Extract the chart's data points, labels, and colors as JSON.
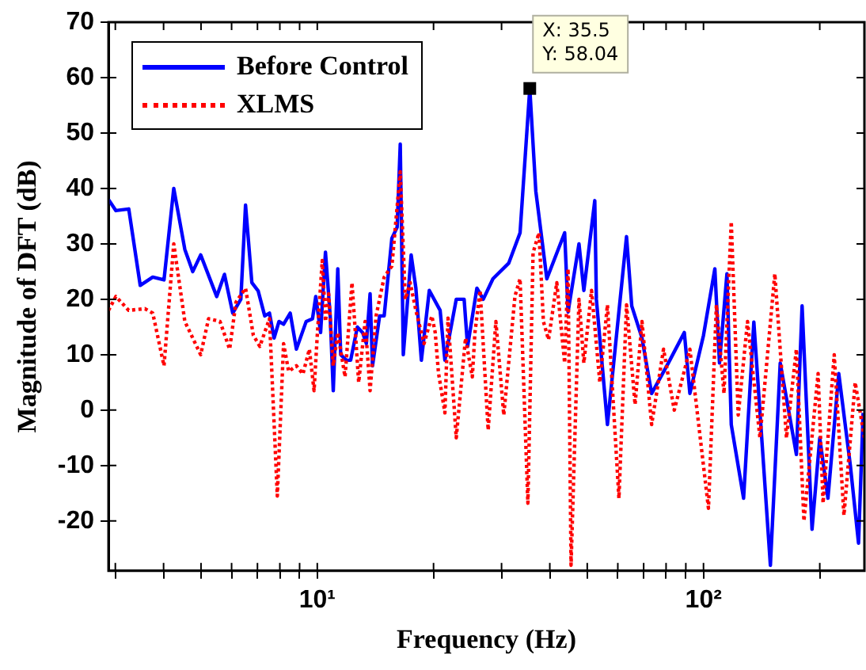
{
  "chart_data": {
    "type": "line",
    "xlabel": "Frequency (Hz)",
    "ylabel": "Magnitude of DFT (dB)",
    "log": "x",
    "grid": false,
    "legend": "top left",
    "marker": "none",
    "xlim": [
      2.88,
      261
    ],
    "ylim": [
      -29,
      70
    ],
    "xticks": [
      {
        "value": 3,
        "label": null
      },
      {
        "value": 4,
        "label": null
      },
      {
        "value": 5,
        "label": null
      },
      {
        "value": 6,
        "label": null
      },
      {
        "value": 7,
        "label": null
      },
      {
        "value": 8,
        "label": null
      },
      {
        "value": 9,
        "label": null
      },
      {
        "value": 10,
        "label": "10¹"
      },
      {
        "value": 20,
        "label": null
      },
      {
        "value": 30,
        "label": null
      },
      {
        "value": 40,
        "label": null
      },
      {
        "value": 50,
        "label": null
      },
      {
        "value": 60,
        "label": null
      },
      {
        "value": 70,
        "label": null
      },
      {
        "value": 80,
        "label": null
      },
      {
        "value": 90,
        "label": null
      },
      {
        "value": 100,
        "label": "10²"
      },
      {
        "value": 200,
        "label": null
      }
    ],
    "yticks": [
      -20,
      -10,
      0,
      10,
      20,
      30,
      40,
      50,
      60,
      70
    ],
    "annotations": [
      {
        "text": "X: 35.5\nY: 58.04",
        "x": 35.5,
        "y": 58.04
      }
    ],
    "series": [
      {
        "name": "Before Control",
        "color": "#0000ff",
        "line_style": "solid",
        "x": [
          2.88,
          3.01,
          3.25,
          3.48,
          3.75,
          4.01,
          4.25,
          4.54,
          4.76,
          4.99,
          5.49,
          5.75,
          6.04,
          6.34,
          6.52,
          6.77,
          7.03,
          7.31,
          7.52,
          7.73,
          7.96,
          8.18,
          8.51,
          8.83,
          9.36,
          9.72,
          9.91,
          10.2,
          10.5,
          10.8,
          11.0,
          11.3,
          11.5,
          11.9,
          12.2,
          12.7,
          13.1,
          13.4,
          13.7,
          13.9,
          14.5,
          14.9,
          15.6,
          16.1,
          16.4,
          16.7,
          17.5,
          18.0,
          18.6,
          19.5,
          20.8,
          21.4,
          22.9,
          24.0,
          24.5,
          25.9,
          26.9,
          28.5,
          31.3,
          33.5,
          35.5,
          36.8,
          37.5,
          39.3,
          43.7,
          44.6,
          47.6,
          49.0,
          52.3,
          52.8,
          56.4,
          63.2,
          65.2,
          69.3,
          73.4,
          81.1,
          89.2,
          92.2,
          100,
          107,
          110,
          115,
          118,
          127,
          135,
          149,
          158,
          174,
          180,
          191,
          200,
          210,
          224,
          240,
          252,
          259
        ],
        "values": [
          38,
          36,
          36.3,
          22.5,
          24,
          23.5,
          40,
          29,
          25,
          28,
          20.5,
          24.5,
          17.5,
          20,
          37,
          23,
          21.5,
          17,
          17.5,
          13,
          16,
          15.5,
          17.5,
          11,
          16,
          16.5,
          20.5,
          14,
          28.5,
          17,
          3.5,
          25.5,
          10,
          9,
          9,
          15,
          14,
          12,
          21,
          8,
          17,
          17,
          31,
          33,
          48,
          10,
          28,
          22,
          9,
          21.6,
          18,
          9,
          20,
          20,
          11.5,
          22,
          20,
          23.7,
          26.5,
          32,
          58.04,
          39.5,
          35,
          23.7,
          32,
          17.7,
          30,
          21.6,
          37.8,
          20,
          -2.6,
          31.3,
          18.8,
          13,
          3,
          8.5,
          14,
          3,
          13.5,
          25.5,
          8.5,
          24.6,
          -2.6,
          -15.9,
          15.9,
          -28,
          8.5,
          -8,
          18.8,
          -21.5,
          -5,
          -15.9,
          6.6,
          -10,
          -24,
          -0.5
        ]
      },
      {
        "name": "XLMS",
        "color": "#ff0000",
        "line_style": "dotted",
        "x": [
          2.88,
          3.01,
          3.25,
          3.58,
          3.75,
          4.01,
          4.25,
          4.54,
          4.99,
          5.23,
          5.6,
          5.93,
          6.16,
          6.52,
          6.83,
          7.1,
          7.52,
          7.88,
          8.18,
          8.43,
          8.83,
          9.18,
          9.54,
          9.81,
          10,
          10.3,
          10.5,
          10.7,
          11.0,
          11.3,
          11.8,
          12.3,
          12.8,
          13.3,
          13.7,
          14.2,
          14.9,
          15.6,
          16.4,
          16.9,
          17.4,
          18.0,
          18.9,
          19.8,
          20.2,
          20.6,
          21.4,
          21.8,
          22.9,
          24.2,
          25.2,
          25.6,
          26.4,
          27.7,
          29.0,
          30.4,
          32.5,
          33.5,
          35.1,
          36.2,
          37.5,
          38.5,
          39.7,
          41.7,
          43.7,
          44.6,
          45.4,
          47.6,
          49.0,
          51.3,
          53.9,
          56.4,
          60.4,
          63.2,
          66.5,
          69.3,
          73.4,
          78.8,
          84.0,
          92.2,
          103,
          108,
          113,
          118,
          123,
          130,
          140,
          153,
          164,
          174,
          182,
          198,
          204,
          218,
          231,
          247,
          261
        ],
        "values": [
          18,
          20.5,
          18,
          18.3,
          17.5,
          8,
          30,
          16,
          10,
          16.5,
          16,
          11,
          19.5,
          22,
          13.5,
          11.5,
          16.5,
          -15.5,
          12,
          7,
          8,
          6.5,
          11,
          3.5,
          13.5,
          27,
          16,
          21,
          8,
          14,
          6,
          23,
          5,
          16,
          3.5,
          17,
          24,
          26,
          43,
          20,
          23,
          18,
          12,
          17,
          14,
          6.7,
          -0.5,
          16.6,
          -5,
          13,
          6,
          14,
          21.6,
          -3.6,
          16,
          -0.9,
          20.6,
          23.7,
          -16.8,
          28.4,
          32,
          16,
          12.7,
          23,
          8.5,
          25.5,
          -28,
          20,
          8.5,
          21.6,
          5,
          19,
          -15.9,
          19,
          1,
          16,
          -2.6,
          11,
          0,
          11,
          -17.7,
          19,
          3,
          34,
          -0.9,
          16,
          -5,
          24.6,
          -5,
          11,
          -20,
          6.6,
          -16.8,
          10,
          -19,
          5,
          -5
        ]
      }
    ]
  }
}
